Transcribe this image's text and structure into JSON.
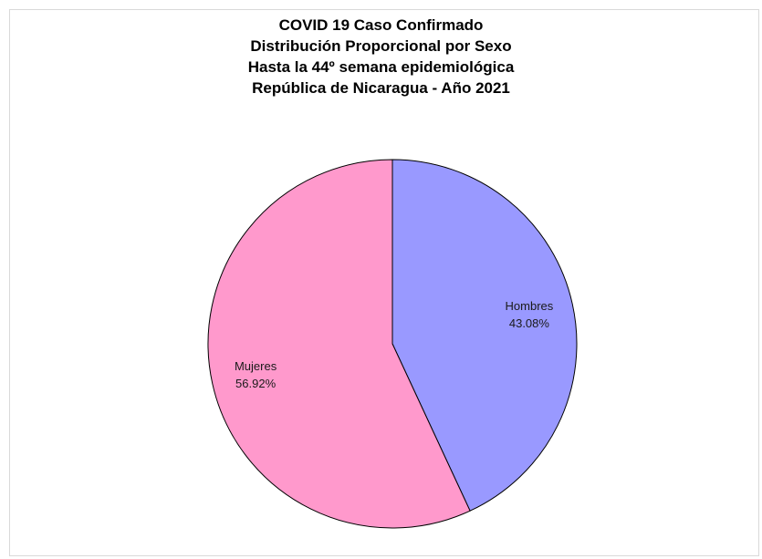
{
  "chart_data": {
    "type": "pie",
    "title_lines": [
      "COVID 19 Caso Confirmado",
      "Distribución Proporcional por Sexo",
      "Hasta la 44º semana epidemiológica",
      "República de Nicaragua - Año 2021"
    ],
    "slices": [
      {
        "label": "Hombres",
        "value": 43.08,
        "value_label": "43.08%",
        "color": "#9999ff"
      },
      {
        "label": "Mujeres",
        "value": 56.92,
        "value_label": "56.92%",
        "color": "#ff99cc"
      }
    ],
    "start_angle": "12 o'clock",
    "direction": "clockwise",
    "slice_border_color": "#000000"
  }
}
